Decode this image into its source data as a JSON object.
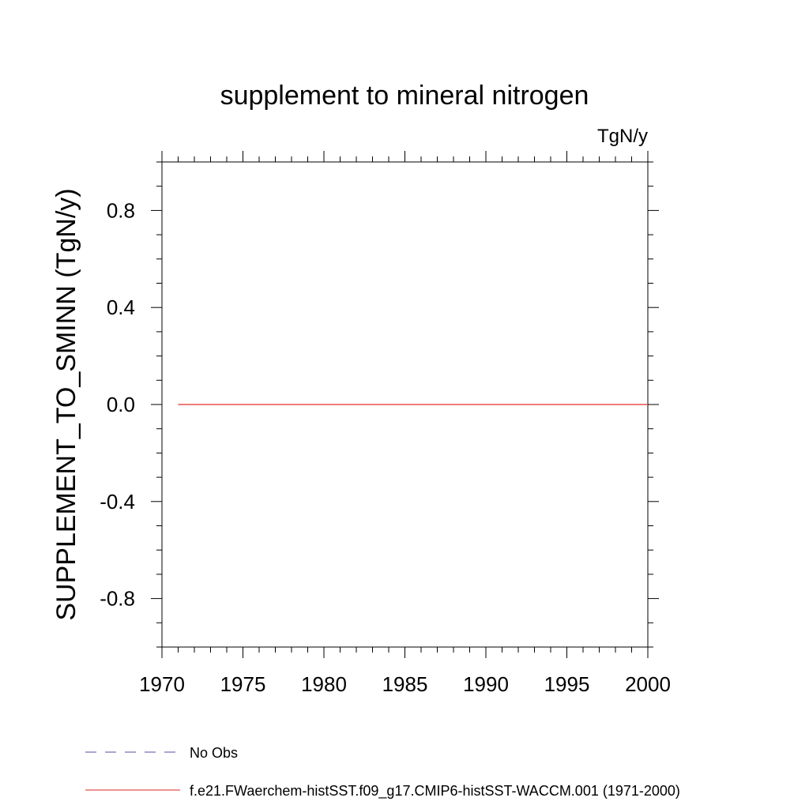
{
  "chart_data": {
    "type": "line",
    "title": "supplement to mineral nitrogen",
    "units_label": "TgN/y",
    "ylabel": "SUPPLEMENT_TO_SMINN  (TgN/y)",
    "xlabel": "",
    "xlim": [
      1970,
      2000
    ],
    "ylim": [
      -1.0,
      1.0
    ],
    "x_ticks": [
      1970,
      1975,
      1980,
      1985,
      1990,
      1995,
      2000
    ],
    "x_tick_labels": [
      "1970",
      "1975",
      "1980",
      "1985",
      "1990",
      "1995",
      "2000"
    ],
    "y_ticks": [
      0.8,
      0.4,
      0.0,
      -0.4,
      -0.8
    ],
    "y_tick_labels": [
      "0.8",
      "0.4",
      "0.0",
      "-0.4",
      "-0.8"
    ],
    "grid": false,
    "legend_position": "bottom",
    "series": [
      {
        "name": "No Obs",
        "color": "#7b6fb5",
        "dash": "dashed",
        "x": [],
        "y": []
      },
      {
        "name": "f.e21.FWaerchem-histSST.f09_g17.CMIP6-histSST-WACCM.001 (1971-2000)",
        "color": "#e8504f",
        "dash": "solid",
        "x": [
          1971,
          1975,
          1980,
          1985,
          1990,
          1995,
          2000
        ],
        "y": [
          0,
          0,
          0,
          0,
          0,
          0,
          0
        ]
      }
    ]
  }
}
